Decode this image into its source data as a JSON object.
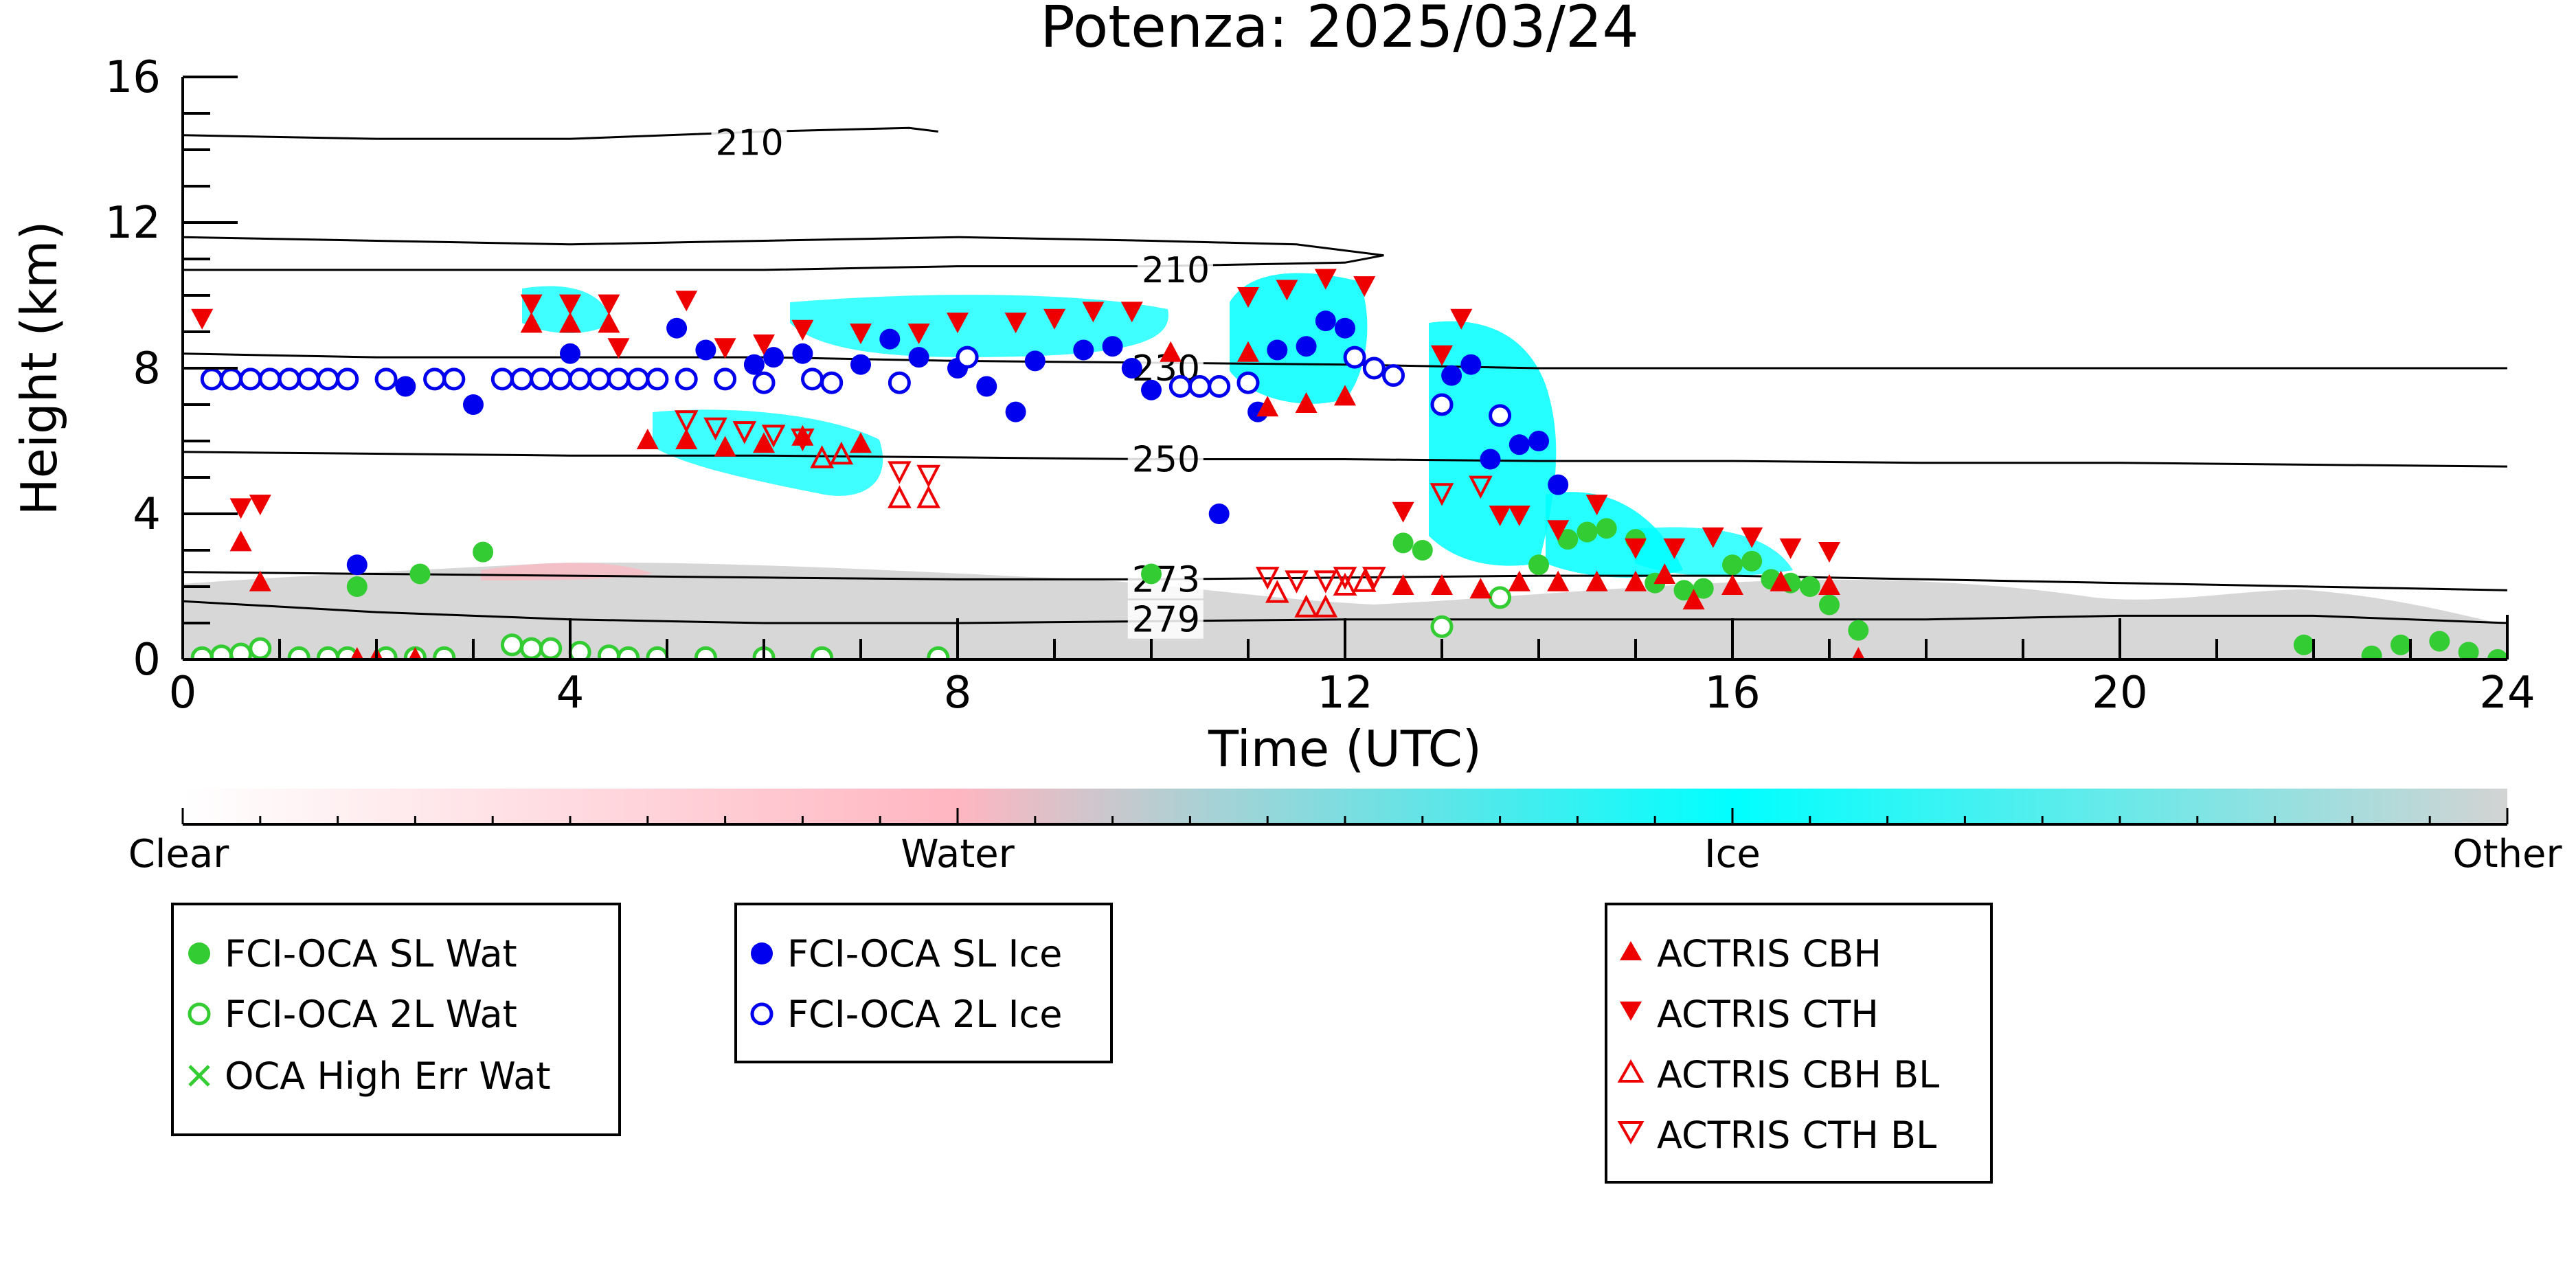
{
  "chart_data": {
    "type": "scatter",
    "title": "Potenza: 2025/03/24",
    "xlabel": "Time (UTC)",
    "ylabel": "Height (km)",
    "xlim": [
      0,
      24
    ],
    "ylim": [
      0,
      16
    ],
    "x_ticks": [
      0,
      4,
      8,
      12,
      16,
      20,
      24
    ],
    "y_ticks": [
      0,
      4,
      8,
      12,
      16
    ],
    "colorbar": {
      "labels": [
        "Clear",
        "Water",
        "Ice",
        "Other"
      ],
      "colors": {
        "clear": "#ffffff",
        "water": "#ffb6c1",
        "ice": "#00ffff",
        "other": "#d3d3d3"
      }
    },
    "contours": [
      {
        "label": "210",
        "label_x": 5.5,
        "label_y": 14.2,
        "points": [
          [
            0,
            14.4
          ],
          [
            2,
            14.3
          ],
          [
            4,
            14.3
          ],
          [
            6,
            14.5
          ],
          [
            7.5,
            14.6
          ],
          [
            7.8,
            14.5
          ]
        ]
      },
      {
        "label": "210",
        "label_x": 9.9,
        "label_y": 10.7,
        "points": [
          [
            0,
            11.6
          ],
          [
            2,
            11.5
          ],
          [
            4,
            11.4
          ],
          [
            6,
            11.5
          ],
          [
            8,
            11.6
          ],
          [
            10,
            11.5
          ],
          [
            11.5,
            11.4
          ],
          [
            12.4,
            11.1
          ],
          [
            12,
            10.9
          ],
          [
            10,
            10.8
          ],
          [
            8,
            10.8
          ],
          [
            6,
            10.7
          ],
          [
            4,
            10.7
          ],
          [
            2,
            10.7
          ],
          [
            0,
            10.7
          ]
        ]
      },
      {
        "label": "230",
        "label_x": 9.8,
        "label_y": 8.0,
        "points": [
          [
            0,
            8.4
          ],
          [
            2,
            8.3
          ],
          [
            4,
            8.3
          ],
          [
            6,
            8.3
          ],
          [
            8,
            8.2
          ],
          [
            10,
            8.15
          ],
          [
            12,
            8.1
          ],
          [
            14,
            8.0
          ],
          [
            16,
            8.0
          ],
          [
            18,
            8.0
          ],
          [
            20,
            8.0
          ],
          [
            22,
            8.0
          ],
          [
            24,
            8.0
          ]
        ]
      },
      {
        "label": "250",
        "label_x": 9.8,
        "label_y": 5.5,
        "points": [
          [
            0,
            5.7
          ],
          [
            2,
            5.65
          ],
          [
            4,
            5.6
          ],
          [
            6,
            5.6
          ],
          [
            8,
            5.55
          ],
          [
            10,
            5.5
          ],
          [
            12,
            5.5
          ],
          [
            14,
            5.45
          ],
          [
            16,
            5.45
          ],
          [
            18,
            5.4
          ],
          [
            20,
            5.4
          ],
          [
            22,
            5.35
          ],
          [
            24,
            5.3
          ]
        ]
      },
      {
        "label": "273",
        "label_x": 9.8,
        "label_y": 2.2,
        "points": [
          [
            0,
            2.4
          ],
          [
            2,
            2.35
          ],
          [
            4,
            2.3
          ],
          [
            6,
            2.25
          ],
          [
            8,
            2.2
          ],
          [
            10,
            2.2
          ],
          [
            12,
            2.25
          ],
          [
            14,
            2.3
          ],
          [
            16,
            2.3
          ],
          [
            18,
            2.2
          ],
          [
            20,
            2.1
          ],
          [
            22,
            2.0
          ],
          [
            24,
            1.9
          ]
        ]
      },
      {
        "label": "279",
        "label_x": 9.8,
        "label_y": 1.1,
        "points": [
          [
            0,
            1.6
          ],
          [
            2,
            1.3
          ],
          [
            4,
            1.1
          ],
          [
            6,
            1.0
          ],
          [
            8,
            1.0
          ],
          [
            10,
            1.05
          ],
          [
            12,
            1.1
          ],
          [
            14,
            1.1
          ],
          [
            16,
            1.1
          ],
          [
            18,
            1.1
          ],
          [
            20,
            1.2
          ],
          [
            22,
            1.2
          ],
          [
            24,
            1.0
          ]
        ]
      }
    ],
    "series": [
      {
        "name": "FCI-OCA SL Wat",
        "marker": "filled-circle",
        "color": "#33cc33",
        "points": [
          [
            1.8,
            2.0
          ],
          [
            2.45,
            2.35
          ],
          [
            3.1,
            2.95
          ],
          [
            10.0,
            2.35
          ],
          [
            12.6,
            3.2
          ],
          [
            12.8,
            3.0
          ],
          [
            14.0,
            2.6
          ],
          [
            14.3,
            3.3
          ],
          [
            14.5,
            3.5
          ],
          [
            14.7,
            3.6
          ],
          [
            15.0,
            3.3
          ],
          [
            15.2,
            2.1
          ],
          [
            15.5,
            1.9
          ],
          [
            15.7,
            1.95
          ],
          [
            16.0,
            2.6
          ],
          [
            16.2,
            2.7
          ],
          [
            16.4,
            2.2
          ],
          [
            16.6,
            2.1
          ],
          [
            16.8,
            2.0
          ],
          [
            17.0,
            1.5
          ],
          [
            17.3,
            0.8
          ],
          [
            21.9,
            0.4
          ],
          [
            22.6,
            0.1
          ],
          [
            22.9,
            0.4
          ],
          [
            23.3,
            0.5
          ],
          [
            23.6,
            0.2
          ],
          [
            23.9,
            0.0
          ]
        ]
      },
      {
        "name": "FCI-OCA 2L Wat",
        "marker": "open-circle",
        "color": "#33cc33",
        "points": [
          [
            0.2,
            0.05
          ],
          [
            0.4,
            0.1
          ],
          [
            0.6,
            0.15
          ],
          [
            0.8,
            0.3
          ],
          [
            1.2,
            0.05
          ],
          [
            1.5,
            0.05
          ],
          [
            1.7,
            0.05
          ],
          [
            2.1,
            0.05
          ],
          [
            2.4,
            0.05
          ],
          [
            2.7,
            0.05
          ],
          [
            3.4,
            0.4
          ],
          [
            3.6,
            0.3
          ],
          [
            3.8,
            0.3
          ],
          [
            4.1,
            0.2
          ],
          [
            4.4,
            0.1
          ],
          [
            4.6,
            0.05
          ],
          [
            4.9,
            0.05
          ],
          [
            5.4,
            0.05
          ],
          [
            6.0,
            0.05
          ],
          [
            6.6,
            0.05
          ],
          [
            7.8,
            0.05
          ],
          [
            13.0,
            0.9
          ],
          [
            13.6,
            1.7
          ]
        ]
      },
      {
        "name": "OCA High Err Wat",
        "marker": "x",
        "color": "#33cc33",
        "points": []
      },
      {
        "name": "FCI-OCA SL Ice",
        "marker": "filled-circle",
        "color": "#0000ee",
        "points": [
          [
            1.8,
            2.6
          ],
          [
            2.3,
            7.5
          ],
          [
            3.0,
            7.0
          ],
          [
            4.0,
            8.4
          ],
          [
            5.1,
            9.1
          ],
          [
            5.4,
            8.5
          ],
          [
            5.9,
            8.1
          ],
          [
            6.1,
            8.3
          ],
          [
            6.4,
            8.4
          ],
          [
            7.0,
            8.1
          ],
          [
            7.3,
            8.8
          ],
          [
            7.6,
            8.3
          ],
          [
            8.0,
            8.0
          ],
          [
            8.3,
            7.5
          ],
          [
            8.6,
            6.8
          ],
          [
            8.8,
            8.2
          ],
          [
            9.3,
            8.5
          ],
          [
            9.6,
            8.6
          ],
          [
            9.8,
            8.0
          ],
          [
            10.0,
            7.4
          ],
          [
            10.7,
            4.0
          ],
          [
            11.1,
            6.8
          ],
          [
            11.3,
            8.5
          ],
          [
            11.6,
            8.6
          ],
          [
            11.8,
            9.3
          ],
          [
            12.0,
            9.1
          ],
          [
            13.1,
            7.8
          ],
          [
            13.3,
            8.1
          ],
          [
            13.5,
            5.5
          ],
          [
            13.8,
            5.9
          ],
          [
            14.0,
            6.0
          ],
          [
            14.2,
            4.8
          ]
        ]
      },
      {
        "name": "FCI-OCA 2L Ice",
        "marker": "open-circle",
        "color": "#0000ee",
        "points": [
          [
            0.3,
            7.7
          ],
          [
            0.5,
            7.7
          ],
          [
            0.7,
            7.7
          ],
          [
            0.9,
            7.7
          ],
          [
            1.1,
            7.7
          ],
          [
            1.3,
            7.7
          ],
          [
            1.5,
            7.7
          ],
          [
            1.7,
            7.7
          ],
          [
            2.1,
            7.7
          ],
          [
            2.6,
            7.7
          ],
          [
            2.8,
            7.7
          ],
          [
            3.3,
            7.7
          ],
          [
            3.5,
            7.7
          ],
          [
            3.7,
            7.7
          ],
          [
            3.9,
            7.7
          ],
          [
            4.1,
            7.7
          ],
          [
            4.3,
            7.7
          ],
          [
            4.5,
            7.7
          ],
          [
            4.7,
            7.7
          ],
          [
            4.9,
            7.7
          ],
          [
            5.2,
            7.7
          ],
          [
            5.6,
            7.7
          ],
          [
            6.0,
            7.6
          ],
          [
            6.5,
            7.7
          ],
          [
            6.7,
            7.6
          ],
          [
            7.4,
            7.6
          ],
          [
            8.1,
            8.3
          ],
          [
            10.3,
            7.5
          ],
          [
            10.5,
            7.5
          ],
          [
            10.7,
            7.5
          ],
          [
            11.0,
            7.6
          ],
          [
            12.1,
            8.3
          ],
          [
            12.3,
            8.0
          ],
          [
            12.5,
            7.8
          ],
          [
            13.0,
            7.0
          ],
          [
            13.6,
            6.7
          ]
        ]
      },
      {
        "name": "ACTRIS CBH",
        "marker": "triangle-up",
        "color": "#ee0000",
        "points": [
          [
            0.6,
            3.2
          ],
          [
            0.8,
            2.1
          ],
          [
            3.6,
            9.2
          ],
          [
            4.0,
            9.2
          ],
          [
            4.4,
            9.2
          ],
          [
            4.8,
            6.0
          ],
          [
            5.2,
            6.0
          ],
          [
            5.6,
            5.8
          ],
          [
            6.0,
            5.9
          ],
          [
            6.4,
            6.1
          ],
          [
            7.0,
            5.9
          ],
          [
            10.2,
            8.4
          ],
          [
            11.0,
            8.4
          ],
          [
            11.2,
            6.9
          ],
          [
            11.6,
            7.0
          ],
          [
            12.0,
            7.2
          ],
          [
            12.6,
            2.0
          ],
          [
            13.0,
            2.0
          ],
          [
            13.4,
            1.9
          ],
          [
            13.8,
            2.1
          ],
          [
            14.2,
            2.1
          ],
          [
            14.6,
            2.1
          ],
          [
            15.0,
            2.1
          ],
          [
            15.3,
            2.3
          ],
          [
            15.6,
            1.6
          ],
          [
            16.0,
            2.0
          ],
          [
            16.5,
            2.1
          ],
          [
            17.0,
            2.0
          ],
          [
            17.3,
            0.0
          ],
          [
            1.8,
            0.0
          ],
          [
            2.0,
            0.0
          ],
          [
            2.4,
            0.0
          ]
        ]
      },
      {
        "name": "ACTRIS CTH",
        "marker": "triangle-down",
        "color": "#ee0000",
        "points": [
          [
            0.2,
            9.4
          ],
          [
            0.6,
            4.2
          ],
          [
            0.8,
            4.3
          ],
          [
            3.6,
            9.8
          ],
          [
            4.0,
            9.8
          ],
          [
            4.4,
            9.8
          ],
          [
            4.5,
            8.6
          ],
          [
            5.2,
            9.9
          ],
          [
            5.6,
            8.6
          ],
          [
            6.0,
            8.7
          ],
          [
            6.4,
            9.1
          ],
          [
            7.0,
            9.0
          ],
          [
            7.6,
            9.0
          ],
          [
            8.0,
            9.3
          ],
          [
            8.6,
            9.3
          ],
          [
            9.0,
            9.4
          ],
          [
            9.4,
            9.6
          ],
          [
            9.8,
            9.6
          ],
          [
            11.0,
            10.0
          ],
          [
            11.4,
            10.2
          ],
          [
            11.8,
            10.5
          ],
          [
            12.2,
            10.3
          ],
          [
            12.6,
            4.1
          ],
          [
            13.0,
            8.4
          ],
          [
            13.2,
            9.4
          ],
          [
            13.6,
            4.0
          ],
          [
            13.8,
            4.0
          ],
          [
            14.2,
            3.6
          ],
          [
            14.6,
            4.3
          ],
          [
            15.0,
            3.1
          ],
          [
            15.4,
            3.1
          ],
          [
            15.8,
            3.4
          ],
          [
            16.2,
            3.4
          ],
          [
            16.6,
            3.1
          ],
          [
            17.0,
            3.0
          ]
        ]
      },
      {
        "name": "ACTRIS CBH BL",
        "marker": "open-triangle-up",
        "color": "#ee0000",
        "points": [
          [
            11.3,
            1.8
          ],
          [
            11.6,
            1.4
          ],
          [
            11.8,
            1.4
          ],
          [
            12.0,
            2.0
          ],
          [
            12.2,
            2.1
          ],
          [
            7.4,
            4.4
          ],
          [
            7.7,
            4.4
          ],
          [
            6.6,
            5.5
          ],
          [
            6.8,
            5.6
          ]
        ]
      },
      {
        "name": "ACTRIS CTH BL",
        "marker": "open-triangle-down",
        "color": "#ee0000",
        "points": [
          [
            5.2,
            6.6
          ],
          [
            5.5,
            6.4
          ],
          [
            5.8,
            6.3
          ],
          [
            6.1,
            6.2
          ],
          [
            6.4,
            6.1
          ],
          [
            7.4,
            5.2
          ],
          [
            7.7,
            5.1
          ],
          [
            11.2,
            2.3
          ],
          [
            11.5,
            2.2
          ],
          [
            11.8,
            2.2
          ],
          [
            12.0,
            2.3
          ],
          [
            12.3,
            2.3
          ],
          [
            13.0,
            4.6
          ],
          [
            13.4,
            4.8
          ]
        ]
      }
    ],
    "legends": [
      {
        "items": [
          "FCI-OCA SL Wat",
          "FCI-OCA 2L Wat",
          "OCA High Err Wat"
        ]
      },
      {
        "items": [
          "FCI-OCA SL Ice",
          "FCI-OCA 2L Ice"
        ]
      },
      {
        "items": [
          "ACTRIS CBH",
          "ACTRIS CTH",
          "ACTRIS CBH BL",
          "ACTRIS CTH BL"
        ]
      }
    ],
    "legend_placement": "below",
    "grid": false
  }
}
